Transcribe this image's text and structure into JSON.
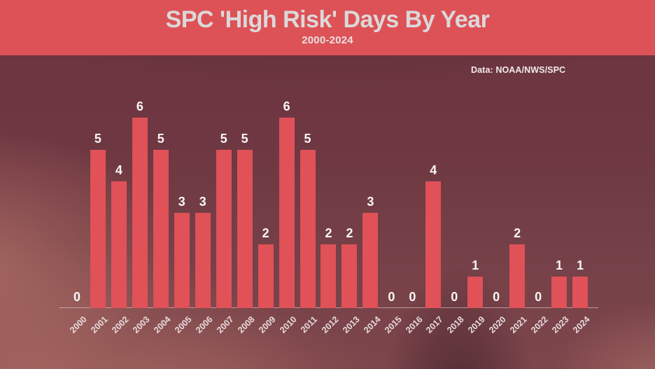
{
  "header": {
    "title": "SPC 'High Risk' Days By Year",
    "subtitle": "2000-2024"
  },
  "attribution": "Data: NOAA/NWS/SPC",
  "colors": {
    "header_bg": "#dd5256",
    "bar": "#e05158",
    "title_text": "#dcd8da",
    "subtitle_text": "#e7e1e2",
    "value_label": "#faf6f6",
    "year_label": "#e7dadd",
    "axis_line": "rgba(237,226,227,0.55)"
  },
  "chart_data": {
    "type": "bar",
    "title": "SPC 'High Risk' Days By Year",
    "subtitle": "2000-2024",
    "source": "Data: NOAA/NWS/SPC",
    "categories": [
      "2000",
      "2001",
      "2002",
      "2003",
      "2004",
      "2005",
      "2006",
      "2007",
      "2008",
      "2009",
      "2010",
      "2011",
      "2012",
      "2013",
      "2014",
      "2015",
      "2016",
      "2017",
      "2018",
      "2019",
      "2020",
      "2021",
      "2022",
      "2023",
      "2024"
    ],
    "values": [
      0,
      5,
      4,
      6,
      5,
      3,
      3,
      5,
      5,
      2,
      6,
      5,
      2,
      2,
      3,
      0,
      0,
      4,
      0,
      1,
      0,
      2,
      0,
      1,
      1
    ],
    "xlabel": "",
    "ylabel": "",
    "ylim": [
      0,
      6
    ],
    "grid": false,
    "legend": false,
    "value_labels": true
  }
}
